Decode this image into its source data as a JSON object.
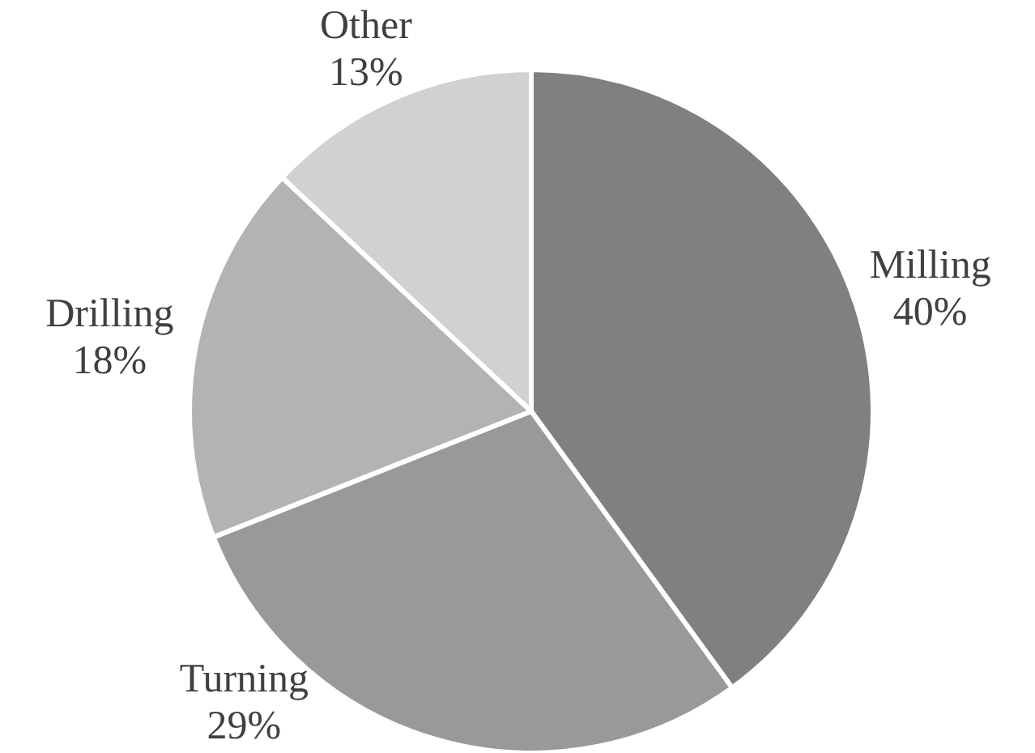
{
  "chart_data": {
    "type": "pie",
    "categories": [
      "Milling",
      "Turning",
      "Drilling",
      "Other"
    ],
    "values": [
      40,
      29,
      18,
      13
    ],
    "colors": [
      "#808080",
      "#999999",
      "#b3b3b3",
      "#d1d1d1"
    ],
    "value_labels": [
      "40%",
      "29%",
      "18%",
      "13%"
    ]
  }
}
